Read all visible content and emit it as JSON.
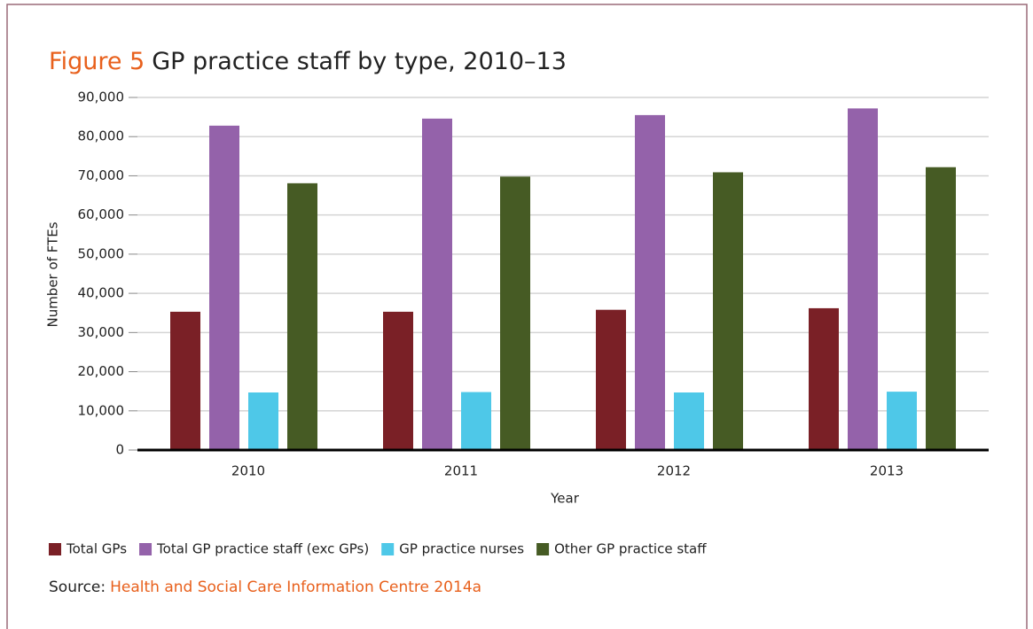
{
  "chart_data": {
    "type": "bar",
    "title_label": "Figure 5",
    "title": "GP practice staff by type, 2010–13",
    "x_label": "Year",
    "y_label": "Number of FTEs",
    "categories": [
      "2010",
      "2011",
      "2012",
      "2013"
    ],
    "series": [
      {
        "name": "Total GPs",
        "color": "#7a2026",
        "values": [
          35300,
          35300,
          35800,
          36200
        ]
      },
      {
        "name": "Total GP practice staff (exc GPs)",
        "color": "#9462aa",
        "values": [
          82800,
          84600,
          85500,
          87200
        ]
      },
      {
        "name": "GP practice nurses",
        "color": "#4ec8e8",
        "values": [
          14700,
          14800,
          14700,
          14900
        ]
      },
      {
        "name": "Other GP practice staff",
        "color": "#465b24",
        "values": [
          68100,
          69800,
          70900,
          72200
        ]
      }
    ],
    "ylim": [
      0,
      90000
    ],
    "yticks": [
      0,
      {
        "value": 10000,
        "label": "10,000"
      },
      {
        "value": 20000,
        "label": "20,000"
      },
      {
        "value": 30000,
        "label": "30,000"
      },
      {
        "value": 40000,
        "label": "40,000"
      },
      {
        "value": 50000,
        "label": "50,000"
      },
      {
        "value": 60000,
        "label": "60,000"
      },
      {
        "value": 70000,
        "label": "70,000"
      },
      {
        "value": 80000,
        "label": "80,000"
      },
      {
        "value": 90000,
        "label": "90,000"
      }
    ],
    "grid": true,
    "legend": "bottom",
    "source_label": "Source:",
    "source": "Health and Social Care Information Centre 2014a"
  }
}
